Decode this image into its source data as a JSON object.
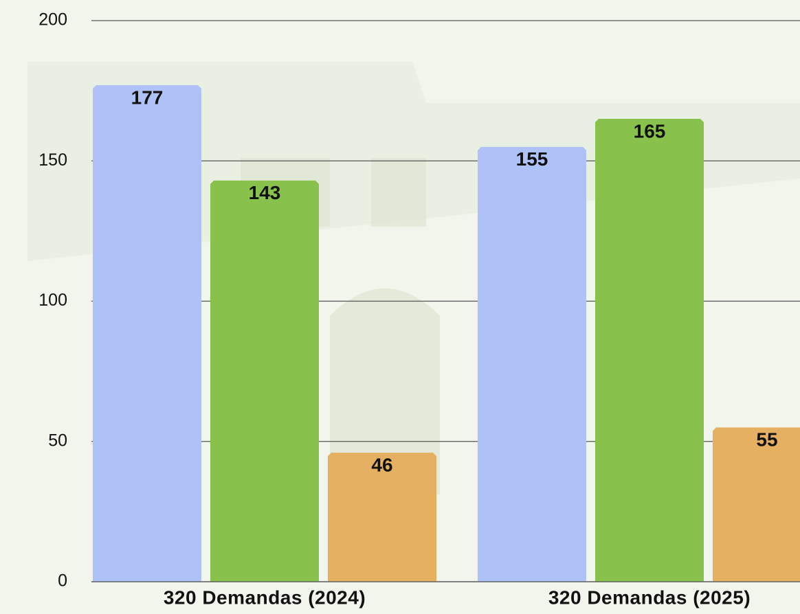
{
  "chart_data": {
    "type": "bar",
    "categories": [
      "320 Demandas (2024)",
      "320 Demandas (2025)"
    ],
    "series": [
      {
        "color": "#afc2f8",
        "values": [
          177,
          155
        ]
      },
      {
        "color": "#88c24c",
        "values": [
          143,
          165
        ]
      },
      {
        "color": "#e6b062",
        "values": [
          46,
          55
        ]
      }
    ],
    "ylim": [
      0,
      200
    ],
    "yticks": [
      0,
      50,
      100,
      150,
      200
    ],
    "grid": true
  }
}
